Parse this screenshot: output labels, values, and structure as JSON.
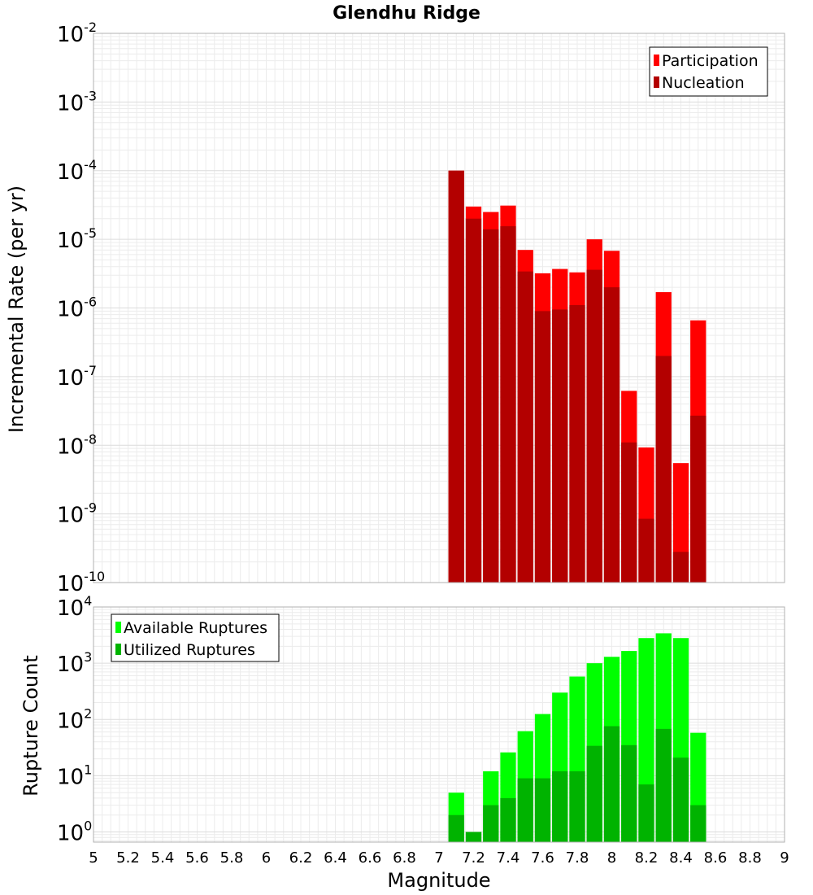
{
  "chart_data": [
    {
      "type": "bar",
      "title": "Glendhu Ridge",
      "xlabel": "",
      "ylabel": "Incremental Rate (per yr)",
      "yscale": "log",
      "ylim_exponents": [
        -10,
        -2
      ],
      "ytick_exponents": [
        "-10",
        "-9",
        "-8",
        "-7",
        "-6",
        "-5",
        "-4",
        "-3",
        "-2"
      ],
      "xlim": [
        5,
        9
      ],
      "grid": true,
      "legend_position": "top-right",
      "colors": {
        "Participation": "#ff0000",
        "Nucleation": "#b30000"
      },
      "x": [
        7.1,
        7.2,
        7.3,
        7.4,
        7.5,
        7.6,
        7.7,
        7.8,
        7.9,
        8.0,
        8.1,
        8.2,
        8.3,
        8.4,
        8.5
      ],
      "series": [
        {
          "name": "Participation",
          "values": [
            0.0001,
            3e-05,
            2.5e-05,
            3.1e-05,
            7e-06,
            3.2e-06,
            3.7e-06,
            3.3e-06,
            1e-05,
            6.8e-06,
            6.2e-08,
            9.3e-09,
            1.7e-06,
            5.5e-09,
            6.6e-07
          ]
        },
        {
          "name": "Nucleation",
          "values": [
            0.0001,
            2e-05,
            1.4e-05,
            1.55e-05,
            3.4e-06,
            9e-07,
            9.5e-07,
            1.1e-06,
            3.6e-06,
            2e-06,
            1.1e-08,
            8.5e-10,
            2e-07,
            2.8e-10,
            2.7e-08
          ]
        }
      ]
    },
    {
      "type": "bar",
      "xlabel": "Magnitude",
      "ylabel": "Rupture Count",
      "yscale": "log",
      "ylim_exponents": [
        -0.18,
        4
      ],
      "ytick_exponents": [
        "0",
        "1",
        "2",
        "3",
        "4"
      ],
      "xlim": [
        5,
        9
      ],
      "xtick_labels": [
        "5",
        "5.2",
        "5.4",
        "5.6",
        "5.8",
        "6",
        "6.2",
        "6.4",
        "6.6",
        "6.8",
        "7",
        "7.2",
        "7.4",
        "7.6",
        "7.8",
        "8",
        "8.2",
        "8.4",
        "8.6",
        "8.8",
        "9"
      ],
      "grid": true,
      "legend_position": "top-left",
      "colors": {
        "Available Ruptures": "#00ff00",
        "Utilized Ruptures": "#00b300"
      },
      "x": [
        7.1,
        7.2,
        7.3,
        7.4,
        7.5,
        7.6,
        7.7,
        7.8,
        7.9,
        8.0,
        8.1,
        8.2,
        8.3,
        8.4,
        8.5
      ],
      "series": [
        {
          "name": "Available Ruptures",
          "values": [
            5,
            1,
            12,
            26,
            62,
            125,
            300,
            580,
            1000,
            1300,
            1650,
            2800,
            3400,
            2800,
            58
          ]
        },
        {
          "name": "Utilized Ruptures",
          "values": [
            2,
            1,
            3,
            4,
            9,
            9,
            12,
            12,
            34,
            76,
            35,
            7,
            68,
            21,
            3
          ]
        }
      ]
    }
  ]
}
